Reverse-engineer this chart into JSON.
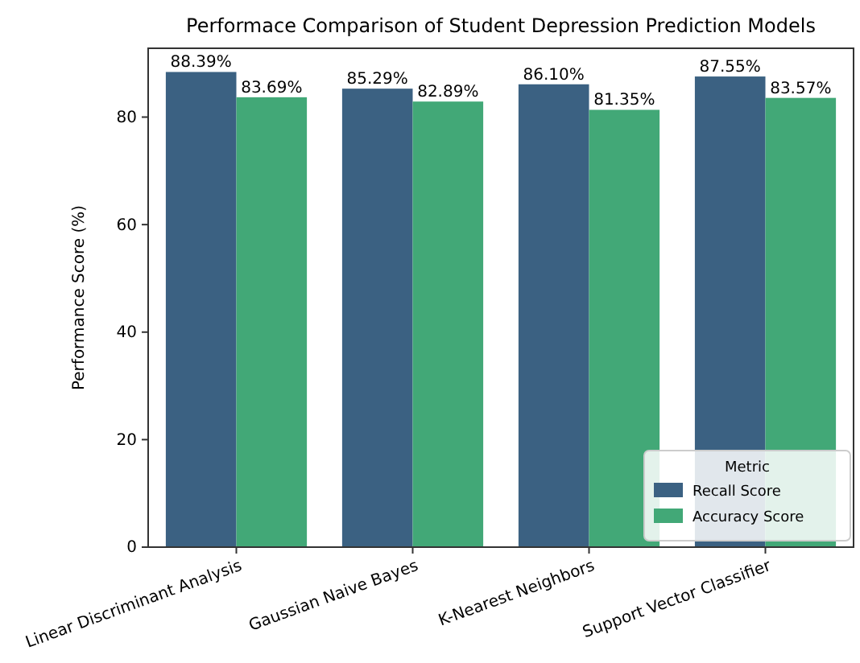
{
  "chart_data": {
    "type": "bar",
    "title": "Performace Comparison of Student Depression Prediction Models",
    "ylabel": "Performance Score (%)",
    "legend_title": "Metric",
    "categories": [
      "Linear Discriminant Analysis",
      "Gaussian Naive Bayes",
      "K-Nearest Neighbors",
      "Support Vector Classifier"
    ],
    "series": [
      {
        "name": "Recall Score",
        "color": "#3b6182",
        "values": [
          88.39,
          85.29,
          86.1,
          87.55
        ],
        "value_labels": [
          "88.39%",
          "85.29%",
          "86.10%",
          "87.55%"
        ]
      },
      {
        "name": "Accuracy Score",
        "color": "#42a877",
        "values": [
          83.69,
          82.89,
          81.35,
          83.57
        ],
        "value_labels": [
          "83.69%",
          "82.89%",
          "81.35%",
          "83.57%"
        ]
      }
    ],
    "ylim": [
      0,
      92.8
    ],
    "yticks": [
      0,
      20,
      40,
      60,
      80
    ],
    "grid": false,
    "legend": "bottom right"
  }
}
